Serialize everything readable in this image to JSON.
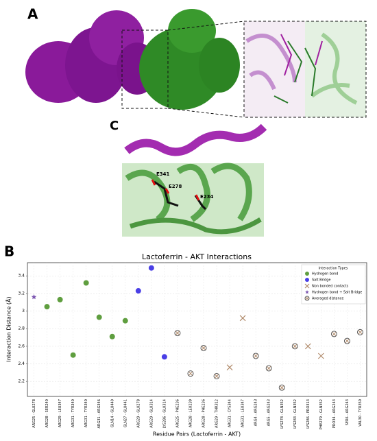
{
  "panels": {
    "a": "A",
    "b": "B",
    "c": "C"
  },
  "structure_labels": [
    "E341",
    "E278",
    "E234"
  ],
  "chart_data": {
    "type": "scatter",
    "title": "Lactoferrin - AKT Interactions",
    "xlabel": "Residue Pairs (Lactoferrin - AKT)",
    "ylabel": "Interaction Distance (Å)",
    "legend_title": "Interaction Types",
    "legend": "upper right",
    "grid": true,
    "categories": [
      "ARG25 - GLU278",
      "ARG28 - SER240",
      "ARG29 - LEU347",
      "ARG31 - TYR340",
      "ARG31 - TYR340",
      "ARG31 - ARG346",
      "GLN14 - GLU440",
      "GLN27 - GLU441",
      "ARG29 - GLU278",
      "ARG29 - GLU314",
      "LYS286 - GLU314",
      "ARG25 - PHE236",
      "ARG28 - LEU239",
      "ARG28 - PHE236",
      "ARG29 - THR312",
      "ARG31 - CYS344",
      "ARG31 - LEU347",
      "ARG4 - ARG243",
      "ARG5 - ARG243",
      "LYS278 - GLN352",
      "LYS283 - GLN352",
      "LYS286 - PRO313",
      "PHE279 - GLN352",
      "PRO34 - ARG243",
      "SER6 - ARG243",
      "VAL30 - TYR350"
    ],
    "series": [
      {
        "name": "Hydrogen bond",
        "color": "#5f9e3f",
        "marker": "circle",
        "values": [
          null,
          3.05,
          3.13,
          2.5,
          3.32,
          2.93,
          2.71,
          2.89,
          null,
          null,
          null,
          null,
          null,
          null,
          null,
          null,
          null,
          null,
          null,
          null,
          null,
          null,
          null,
          null,
          null,
          null
        ]
      },
      {
        "name": "Salt Bridge",
        "color": "#4a3fe6",
        "marker": "circle",
        "values": [
          null,
          null,
          null,
          null,
          null,
          null,
          null,
          null,
          3.23,
          3.49,
          2.48,
          null,
          null,
          null,
          null,
          null,
          null,
          null,
          null,
          null,
          null,
          null,
          null,
          null,
          null,
          null
        ]
      },
      {
        "name": "Non bonded contacts",
        "color": "#b08a6a",
        "marker": "x",
        "values": [
          null,
          null,
          null,
          null,
          null,
          null,
          null,
          null,
          null,
          null,
          null,
          null,
          null,
          null,
          null,
          2.36,
          2.92,
          null,
          null,
          null,
          null,
          2.6,
          2.49,
          null,
          null,
          null
        ]
      },
      {
        "name": "Hydrogen bond + Salt Bridge",
        "color": "#7b55b0",
        "marker": "star",
        "values": [
          3.16,
          null,
          null,
          null,
          null,
          null,
          null,
          null,
          null,
          null,
          null,
          null,
          null,
          null,
          null,
          null,
          null,
          null,
          null,
          null,
          null,
          null,
          null,
          null,
          null,
          null
        ]
      },
      {
        "name": "Averaged distance",
        "color": "#555555",
        "marker": "circle-x",
        "values": [
          null,
          null,
          null,
          null,
          null,
          null,
          null,
          null,
          null,
          null,
          null,
          2.75,
          2.29,
          2.58,
          2.26,
          null,
          null,
          2.49,
          2.35,
          2.13,
          2.6,
          null,
          null,
          2.74,
          2.66,
          2.76
        ]
      }
    ],
    "ylim": [
      2.03,
      3.55
    ],
    "yticks": [
      2.2,
      2.4,
      2.6,
      2.8,
      3.0,
      3.2,
      3.4
    ]
  }
}
